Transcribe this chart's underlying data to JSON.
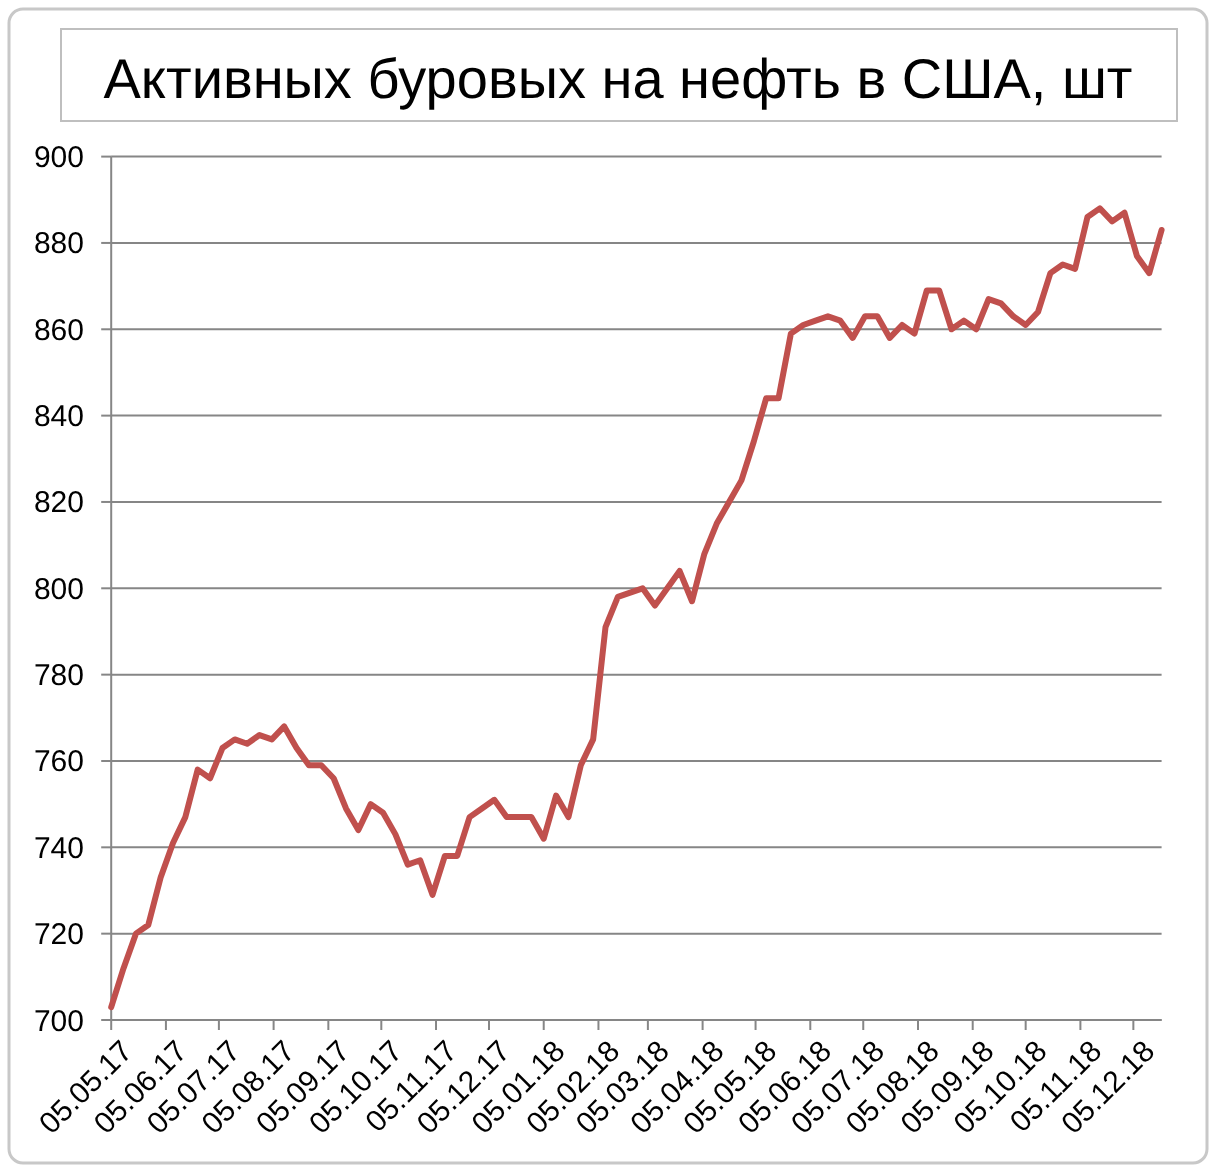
{
  "chart_data": {
    "type": "line",
    "title": "Активных буровых на нефть в США, шт",
    "x": [
      "2017-05-05",
      "2017-05-12",
      "2017-05-19",
      "2017-05-26",
      "2017-06-02",
      "2017-06-09",
      "2017-06-16",
      "2017-06-23",
      "2017-06-30",
      "2017-07-07",
      "2017-07-14",
      "2017-07-21",
      "2017-07-28",
      "2017-08-04",
      "2017-08-11",
      "2017-08-18",
      "2017-08-25",
      "2017-09-01",
      "2017-09-08",
      "2017-09-15",
      "2017-09-22",
      "2017-09-29",
      "2017-10-06",
      "2017-10-13",
      "2017-10-20",
      "2017-10-27",
      "2017-11-03",
      "2017-11-10",
      "2017-11-17",
      "2017-11-24",
      "2017-12-01",
      "2017-12-08",
      "2017-12-15",
      "2017-12-22",
      "2017-12-29",
      "2018-01-05",
      "2018-01-12",
      "2018-01-19",
      "2018-01-26",
      "2018-02-02",
      "2018-02-09",
      "2018-02-16",
      "2018-02-23",
      "2018-03-02",
      "2018-03-09",
      "2018-03-16",
      "2018-03-23",
      "2018-03-30",
      "2018-04-06",
      "2018-04-13",
      "2018-04-20",
      "2018-04-27",
      "2018-05-04",
      "2018-05-11",
      "2018-05-18",
      "2018-05-25",
      "2018-06-01",
      "2018-06-08",
      "2018-06-15",
      "2018-06-22",
      "2018-06-29",
      "2018-07-06",
      "2018-07-13",
      "2018-07-20",
      "2018-07-27",
      "2018-08-03",
      "2018-08-10",
      "2018-08-17",
      "2018-08-24",
      "2018-08-31",
      "2018-09-07",
      "2018-09-14",
      "2018-09-21",
      "2018-09-28",
      "2018-10-05",
      "2018-10-12",
      "2018-10-19",
      "2018-10-26",
      "2018-11-02",
      "2018-11-09",
      "2018-11-16",
      "2018-11-23",
      "2018-11-30",
      "2018-12-07",
      "2018-12-14",
      "2018-12-21"
    ],
    "series": [
      {
        "color": "#c0504d",
        "values": [
          703,
          712,
          720,
          722,
          733,
          741,
          747,
          758,
          756,
          763,
          765,
          764,
          766,
          765,
          768,
          763,
          759,
          759,
          756,
          749,
          744,
          750,
          748,
          743,
          736,
          737,
          729,
          738,
          738,
          747,
          749,
          751,
          747,
          747,
          747,
          742,
          752,
          747,
          759,
          765,
          791,
          798,
          799,
          800,
          796,
          800,
          804,
          797,
          808,
          815,
          820,
          825,
          834,
          844,
          844,
          859,
          861,
          862,
          863,
          862,
          858,
          863,
          863,
          858,
          861,
          859,
          869,
          869,
          860,
          862,
          860,
          867,
          866,
          863,
          861,
          864,
          873,
          875,
          874,
          886,
          888,
          885,
          887,
          877,
          873,
          883
        ]
      }
    ],
    "xlim": [
      "2017-05-05",
      "2018-12-21"
    ],
    "xticks": [
      {
        "value": "2017-05-05",
        "label": "05.05.17"
      },
      {
        "value": "2017-06-05",
        "label": "05.06.17"
      },
      {
        "value": "2017-07-05",
        "label": "05.07.17"
      },
      {
        "value": "2017-08-05",
        "label": "05.08.17"
      },
      {
        "value": "2017-09-05",
        "label": "05.09.17"
      },
      {
        "value": "2017-10-05",
        "label": "05.10.17"
      },
      {
        "value": "2017-11-05",
        "label": "05.11.17"
      },
      {
        "value": "2017-12-05",
        "label": "05.12.17"
      },
      {
        "value": "2018-01-05",
        "label": "05.01.18"
      },
      {
        "value": "2018-02-05",
        "label": "05.02.18"
      },
      {
        "value": "2018-03-05",
        "label": "05.03.18"
      },
      {
        "value": "2018-04-05",
        "label": "05.04.18"
      },
      {
        "value": "2018-05-05",
        "label": "05.05.18"
      },
      {
        "value": "2018-06-05",
        "label": "05.06.18"
      },
      {
        "value": "2018-07-05",
        "label": "05.07.18"
      },
      {
        "value": "2018-08-05",
        "label": "05.08.18"
      },
      {
        "value": "2018-09-05",
        "label": "05.09.18"
      },
      {
        "value": "2018-10-05",
        "label": "05.10.18"
      },
      {
        "value": "2018-11-05",
        "label": "05.11.18"
      },
      {
        "value": "2018-12-05",
        "label": "05.12.18"
      }
    ],
    "ylim": [
      700,
      900
    ],
    "yticks": [
      700,
      720,
      740,
      760,
      780,
      800,
      820,
      840,
      860,
      880,
      900
    ],
    "grid": "y",
    "line_style": "solid"
  }
}
